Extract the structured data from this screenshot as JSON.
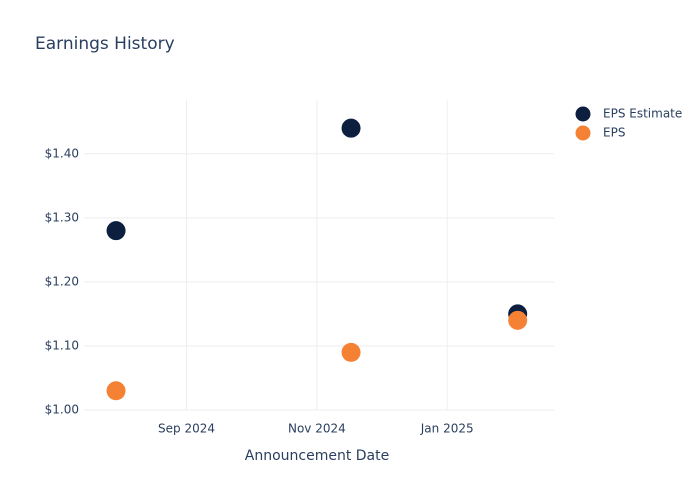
{
  "chart_data": {
    "type": "scatter",
    "title": "Earnings History",
    "x_label": "Announcement Date",
    "series": [
      {
        "name": "EPS Estimate",
        "color": "#0c1f3f",
        "x": [
          "2024-07-30",
          "2024-11-17",
          "2025-02-03"
        ],
        "values": [
          1.28,
          1.44,
          1.15
        ]
      },
      {
        "name": "EPS",
        "color": "#f58134",
        "x": [
          "2024-07-30",
          "2024-11-17",
          "2025-02-03"
        ],
        "values": [
          1.03,
          1.09,
          1.14
        ]
      }
    ],
    "xlim": [
      "2024-07-15",
      "2025-02-20"
    ],
    "xticks": [
      {
        "value": "2024-09-01",
        "label": "Sep 2024"
      },
      {
        "value": "2024-11-01",
        "label": "Nov 2024"
      },
      {
        "value": "2025-01-01",
        "label": "Jan 2025"
      }
    ],
    "ylim": [
      1.0,
      1.484
    ],
    "yticks": [
      {
        "value": 1.0,
        "label": "$1.00"
      },
      {
        "value": 1.1,
        "label": "$1.10"
      },
      {
        "value": 1.2,
        "label": "$1.20"
      },
      {
        "value": 1.3,
        "label": "$1.30"
      },
      {
        "value": 1.4,
        "label": "$1.40"
      }
    ],
    "grid": true,
    "legend": "top-right"
  }
}
